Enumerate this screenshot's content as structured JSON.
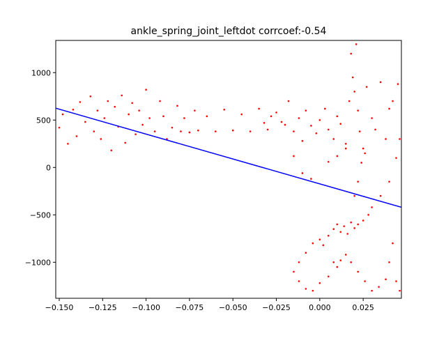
{
  "chart_data": {
    "type": "scatter",
    "title": "ankle_spring_joint_leftdot corrcoef:-0.54",
    "xlabel": "",
    "ylabel": "",
    "xlim": [
      -0.152,
      0.047
    ],
    "ylim": [
      -1380,
      1340
    ],
    "grid": false,
    "x_ticks": [
      -0.15,
      -0.125,
      -0.1,
      -0.075,
      -0.05,
      -0.025,
      0.0,
      0.025
    ],
    "x_tick_labels": [
      "−0.150",
      "−0.125",
      "−0.100",
      "−0.075",
      "−0.050",
      "−0.025",
      "0.000",
      "0.025"
    ],
    "y_ticks": [
      1000,
      500,
      0,
      -500,
      -1000
    ],
    "y_tick_labels": [
      "1000",
      "500",
      "0",
      "−500",
      "−1000"
    ],
    "point_color": "#ff0000",
    "fit_line_color": "#0000ff",
    "fit_line": {
      "x": [
        -0.152,
        0.047
      ],
      "y": [
        625,
        -420
      ]
    },
    "series": [
      {
        "values_xy": [
          [
            -0.15,
            420
          ],
          [
            -0.148,
            560
          ],
          [
            -0.145,
            250
          ],
          [
            -0.142,
            610
          ],
          [
            -0.14,
            330
          ],
          [
            -0.138,
            690
          ],
          [
            -0.135,
            480
          ],
          [
            -0.132,
            750
          ],
          [
            -0.13,
            380
          ],
          [
            -0.128,
            600
          ],
          [
            -0.126,
            300
          ],
          [
            -0.124,
            520
          ],
          [
            -0.122,
            700
          ],
          [
            -0.12,
            180
          ],
          [
            -0.118,
            640
          ],
          [
            -0.116,
            430
          ],
          [
            -0.114,
            760
          ],
          [
            -0.112,
            260
          ],
          [
            -0.11,
            560
          ],
          [
            -0.108,
            680
          ],
          [
            -0.106,
            350
          ],
          [
            -0.104,
            600
          ],
          [
            -0.102,
            450
          ],
          [
            -0.1,
            820
          ],
          [
            -0.098,
            520
          ],
          [
            -0.095,
            380
          ],
          [
            -0.092,
            700
          ],
          [
            -0.09,
            540
          ],
          [
            -0.088,
            300
          ],
          [
            -0.085,
            420
          ],
          [
            -0.082,
            650
          ],
          [
            -0.08,
            380
          ],
          [
            -0.078,
            520
          ],
          [
            -0.075,
            370
          ],
          [
            -0.072,
            600
          ],
          [
            -0.07,
            390
          ],
          [
            -0.065,
            540
          ],
          [
            -0.06,
            380
          ],
          [
            -0.055,
            610
          ],
          [
            -0.05,
            390
          ],
          [
            -0.045,
            560
          ],
          [
            -0.04,
            380
          ],
          [
            -0.035,
            620
          ],
          [
            -0.03,
            400
          ],
          [
            -0.025,
            580
          ],
          [
            -0.02,
            450
          ],
          [
            -0.018,
            700
          ],
          [
            -0.015,
            380
          ],
          [
            -0.012,
            520
          ],
          [
            -0.01,
            280
          ],
          [
            -0.008,
            600
          ],
          [
            -0.005,
            440
          ],
          [
            -0.002,
            360
          ],
          [
            0.0,
            500
          ],
          [
            0.003,
            620
          ],
          [
            0.005,
            400
          ],
          [
            0.008,
            300
          ],
          [
            0.01,
            540
          ],
          [
            0.012,
            460
          ],
          [
            0.015,
            250
          ],
          [
            0.017,
            700
          ],
          [
            0.018,
            1200
          ],
          [
            0.019,
            950
          ],
          [
            0.02,
            800
          ],
          [
            0.021,
            1300
          ],
          [
            0.022,
            600
          ],
          [
            0.023,
            380
          ],
          [
            0.025,
            200
          ],
          [
            0.027,
            850
          ],
          [
            0.03,
            520
          ],
          [
            0.032,
            400
          ],
          [
            0.035,
            900
          ],
          [
            0.038,
            300
          ],
          [
            0.04,
            620
          ],
          [
            0.042,
            700
          ],
          [
            0.045,
            880
          ],
          [
            0.046,
            300
          ],
          [
            0.044,
            100
          ],
          [
            0.04,
            -150
          ],
          [
            0.035,
            -300
          ],
          [
            0.03,
            -420
          ],
          [
            0.028,
            -500
          ],
          [
            0.025,
            -560
          ],
          [
            0.022,
            -600
          ],
          [
            0.02,
            -640
          ],
          [
            0.018,
            -580
          ],
          [
            0.016,
            -700
          ],
          [
            0.014,
            -620
          ],
          [
            0.012,
            -680
          ],
          [
            0.01,
            -600
          ],
          [
            0.008,
            -650
          ],
          [
            0.005,
            -720
          ],
          [
            0.002,
            -820
          ],
          [
            0.0,
            -760
          ],
          [
            -0.004,
            -800
          ],
          [
            -0.008,
            -900
          ],
          [
            -0.012,
            -1000
          ],
          [
            -0.015,
            -1100
          ],
          [
            -0.012,
            -1200
          ],
          [
            -0.008,
            -1280
          ],
          [
            -0.004,
            -1300
          ],
          [
            0.0,
            -1220
          ],
          [
            0.005,
            -1150
          ],
          [
            0.008,
            -1000
          ],
          [
            0.01,
            -1050
          ],
          [
            0.012,
            -980
          ],
          [
            0.015,
            -920
          ],
          [
            0.018,
            -1000
          ],
          [
            0.022,
            -1100
          ],
          [
            0.026,
            -1200
          ],
          [
            0.03,
            -1300
          ],
          [
            0.034,
            -1260
          ],
          [
            0.038,
            -1180
          ],
          [
            0.04,
            -1000
          ],
          [
            0.042,
            -800
          ],
          [
            0.044,
            -1200
          ],
          [
            0.046,
            -1300
          ],
          [
            0.02,
            -300
          ],
          [
            0.022,
            -150
          ],
          [
            0.024,
            50
          ],
          [
            0.026,
            150
          ],
          [
            0.015,
            200
          ],
          [
            0.01,
            120
          ],
          [
            0.005,
            60
          ],
          [
            -0.005,
            -120
          ],
          [
            -0.01,
            -60
          ],
          [
            -0.015,
            120
          ],
          [
            -0.022,
            480
          ],
          [
            -0.028,
            540
          ],
          [
            -0.032,
            470
          ]
        ]
      }
    ]
  }
}
